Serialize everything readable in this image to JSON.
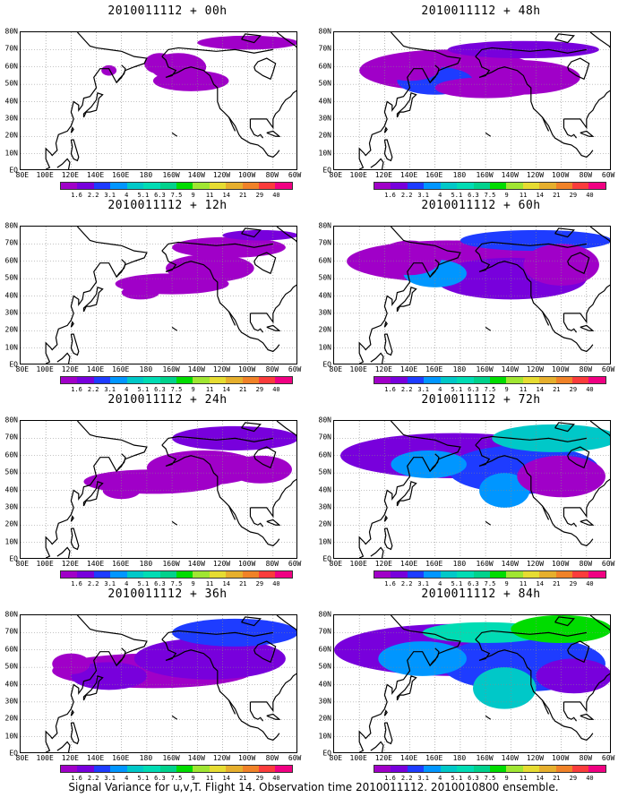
{
  "panels": [
    {
      "title": "2010011112 + 00h",
      "intensity": 0.25
    },
    {
      "title": "2010011112 + 48h",
      "intensity": 0.55
    },
    {
      "title": "2010011112 + 12h",
      "intensity": 0.35
    },
    {
      "title": "2010011112 + 60h",
      "intensity": 0.65
    },
    {
      "title": "2010011112 + 24h",
      "intensity": 0.45
    },
    {
      "title": "2010011112 + 72h",
      "intensity": 0.75
    },
    {
      "title": "2010011112 + 36h",
      "intensity": 0.5
    },
    {
      "title": "2010011112 + 84h",
      "intensity": 0.85
    }
  ],
  "lat_labels": [
    "80N",
    "70N",
    "60N",
    "50N",
    "40N",
    "30N",
    "20N",
    "10N",
    "EQ"
  ],
  "lon_labels": [
    "80E",
    "100E",
    "120E",
    "140E",
    "160E",
    "180",
    "160W",
    "140W",
    "120W",
    "100W",
    "80W",
    "60W"
  ],
  "colorbar": {
    "levels": [
      "1.6",
      "2.2",
      "3.1",
      "4",
      "5.1",
      "6.3",
      "7.5",
      "9",
      "11",
      "14",
      "21",
      "29",
      "40"
    ],
    "colors": [
      "#a000c8",
      "#7800dc",
      "#1e3cff",
      "#0096ff",
      "#00c8c8",
      "#00dcb4",
      "#00d28c",
      "#00dc00",
      "#a0e632",
      "#e6dc32",
      "#e6af2d",
      "#f08228",
      "#fa3c3c",
      "#f00082"
    ]
  },
  "footer": "Signal Variance for u,v,T. Flight 14. Observation time 2010011112. 2010010800 ensemble."
}
